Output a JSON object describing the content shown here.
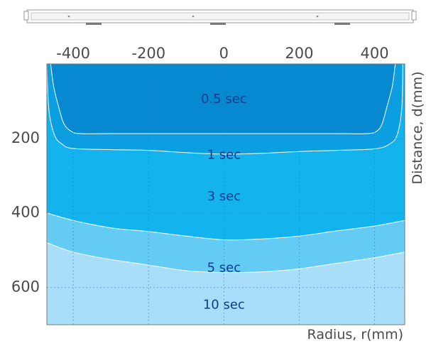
{
  "chart_data": {
    "type": "area",
    "xlabel": "Radius, r(mm)",
    "ylabel": "Distance, d(mm)",
    "xlim": [
      -470,
      480
    ],
    "ylim": [
      0,
      700
    ],
    "y_reversed": true,
    "x_ticks": [
      "-400",
      "-200",
      "0",
      "200",
      "400"
    ],
    "x_tick_values": [
      -400,
      -200,
      0,
      200,
      400
    ],
    "y_ticks": [
      "200",
      "400",
      "600"
    ],
    "y_tick_values": [
      200,
      400,
      600
    ],
    "grid": true,
    "colors": {
      "background": "#ffffff",
      "grid": "#3d6fd0",
      "zone_10": "#a9def8",
      "zone_5": "#63cbf4",
      "zone_3": "#13b3ee",
      "zone_1": "#0b9fe2",
      "zone_05": "#0689d0",
      "contour_line": "#ffffff",
      "label_text": "#0a3d8e",
      "axis_text": "#4a4a4a",
      "device": "#9a9a9a"
    },
    "series": [
      {
        "name": "10 sec",
        "label_at": {
          "x": 0,
          "y": 648
        },
        "points": [
          [
            -470,
            700
          ],
          [
            -470,
            480
          ],
          [
            -400,
            505
          ],
          [
            -300,
            525
          ],
          [
            -200,
            540
          ],
          [
            -100,
            555
          ],
          [
            0,
            560
          ],
          [
            100,
            558
          ],
          [
            200,
            550
          ],
          [
            300,
            535
          ],
          [
            400,
            520
          ],
          [
            480,
            505
          ],
          [
            480,
            700
          ]
        ]
      },
      {
        "name": "5 sec",
        "label_at": {
          "x": 0,
          "y": 548
        },
        "points": [
          [
            -470,
            700
          ],
          [
            -470,
            400
          ],
          [
            -400,
            420
          ],
          [
            -300,
            440
          ],
          [
            -200,
            450
          ],
          [
            -100,
            462
          ],
          [
            0,
            472
          ],
          [
            100,
            470
          ],
          [
            200,
            462
          ],
          [
            300,
            448
          ],
          [
            400,
            435
          ],
          [
            480,
            420
          ],
          [
            480,
            700
          ]
        ]
      },
      {
        "name": "3 sec",
        "label_at": {
          "x": 0,
          "y": 357
        },
        "points": [
          [
            -470,
            700
          ],
          [
            -470,
            0
          ],
          [
            480,
            0
          ],
          [
            480,
            700
          ]
        ]
      },
      {
        "name": "1 sec",
        "label_at": {
          "x": 0,
          "y": 245
        },
        "points": [
          [
            -470,
            0
          ],
          [
            -465,
            120
          ],
          [
            -450,
            190
          ],
          [
            -430,
            215
          ],
          [
            -400,
            227
          ],
          [
            -300,
            230
          ],
          [
            -200,
            232
          ],
          [
            -100,
            238
          ],
          [
            0,
            242
          ],
          [
            100,
            240
          ],
          [
            200,
            235
          ],
          [
            300,
            232
          ],
          [
            400,
            228
          ],
          [
            440,
            215
          ],
          [
            460,
            190
          ],
          [
            472,
            120
          ],
          [
            475,
            0
          ]
        ]
      },
      {
        "name": "0.5 sec",
        "label_at": {
          "x": 0,
          "y": 95
        },
        "points": [
          [
            -460,
            0
          ],
          [
            -452,
            60
          ],
          [
            -440,
            110
          ],
          [
            -425,
            160
          ],
          [
            -405,
            181
          ],
          [
            -380,
            187
          ],
          [
            -300,
            187
          ],
          [
            -200,
            187
          ],
          [
            -100,
            187
          ],
          [
            0,
            187
          ],
          [
            100,
            187
          ],
          [
            200,
            187
          ],
          [
            300,
            187
          ],
          [
            380,
            187
          ],
          [
            405,
            181
          ],
          [
            420,
            160
          ],
          [
            434,
            110
          ],
          [
            447,
            60
          ],
          [
            455,
            0
          ]
        ]
      }
    ]
  }
}
